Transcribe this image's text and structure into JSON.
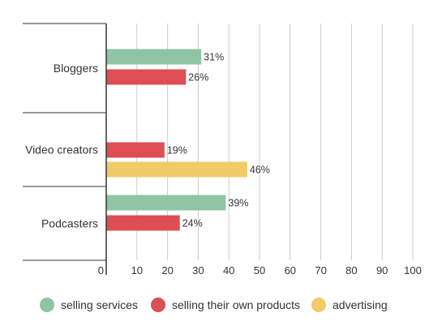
{
  "chart_data": {
    "type": "bar",
    "orientation": "horizontal",
    "categories": [
      "Bloggers",
      "Video creators",
      "Podcasters"
    ],
    "series": [
      {
        "name": "selling services",
        "color": "#8fc4a5",
        "values": [
          31,
          null,
          39
        ],
        "labels": [
          "31%",
          null,
          "39%"
        ]
      },
      {
        "name": "selling their own products",
        "color": "#dd4f55",
        "values": [
          26,
          19,
          24
        ],
        "labels": [
          "26%",
          "19%",
          "24%"
        ]
      },
      {
        "name": "advertising",
        "color": "#f0cb66",
        "values": [
          null,
          46,
          null
        ],
        "labels": [
          null,
          "46%",
          null
        ]
      }
    ],
    "xlim": [
      0,
      100
    ],
    "xticks": [
      "0",
      "10",
      "20",
      "30",
      "40",
      "50",
      "60",
      "70",
      "80",
      "90",
      "100"
    ],
    "grid": true,
    "legend_position": "bottom",
    "title": "",
    "xlabel": "",
    "ylabel": ""
  }
}
